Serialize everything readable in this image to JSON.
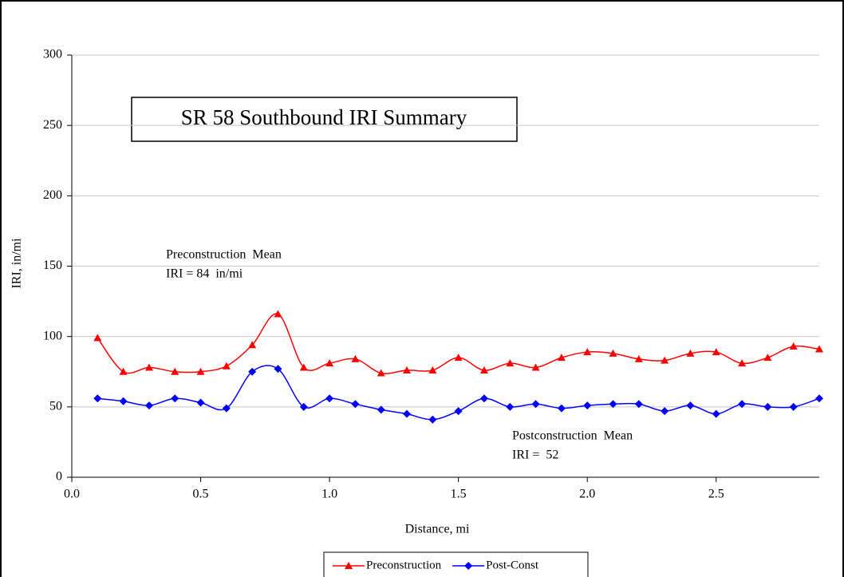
{
  "chart_data": {
    "type": "line",
    "title": "SR 58 Southbound IRI Summary",
    "x_label": "Distance, mi",
    "y_label": "IRI, in/mi",
    "x": [
      0.1,
      0.2,
      0.3,
      0.4,
      0.5,
      0.6,
      0.7,
      0.8,
      0.9,
      1.0,
      1.1,
      1.2,
      1.3,
      1.4,
      1.5,
      1.6,
      1.7,
      1.8,
      1.9,
      2.0,
      2.1,
      2.2,
      2.3,
      2.4,
      2.5,
      2.6,
      2.7,
      2.8,
      2.9
    ],
    "series": [
      {
        "name": "Preconstruction",
        "color": "#ff0000",
        "marker": "triangle",
        "values": [
          99,
          75,
          78,
          75,
          75,
          79,
          94,
          116,
          78,
          81,
          84,
          74,
          76,
          76,
          85,
          76,
          81,
          78,
          85,
          89,
          88,
          84,
          83,
          88,
          89,
          81,
          85,
          93,
          91
        ]
      },
      {
        "name": "Post-Const",
        "color": "#0000ff",
        "marker": "diamond",
        "values": [
          56,
          54,
          51,
          56,
          53,
          49,
          75,
          77,
          50,
          56,
          52,
          48,
          45,
          41,
          47,
          56,
          50,
          52,
          49,
          51,
          52,
          52,
          47,
          51,
          45,
          52,
          50,
          50,
          56
        ]
      }
    ],
    "xlim": [
      0,
      2.9
    ],
    "xticks": [
      {
        "value": 0,
        "label": "0.0"
      },
      0.5,
      {
        "value": 1,
        "label": "1.0"
      },
      1.5,
      {
        "value": 2,
        "label": "2.0"
      },
      2.5
    ],
    "ylim": [
      0,
      300
    ],
    "yticks": [
      0,
      50,
      100,
      150,
      200,
      250,
      300
    ],
    "grid": true,
    "legend": "bottom",
    "annotations": [
      {
        "lines": [
          "Preconstruction  Mean",
          "IRI = 84  in/mi"
        ],
        "color": "#ff0000"
      },
      {
        "lines": [
          "Postconstruction  Mean",
          "IRI =  52"
        ],
        "color": "#000080"
      }
    ]
  }
}
